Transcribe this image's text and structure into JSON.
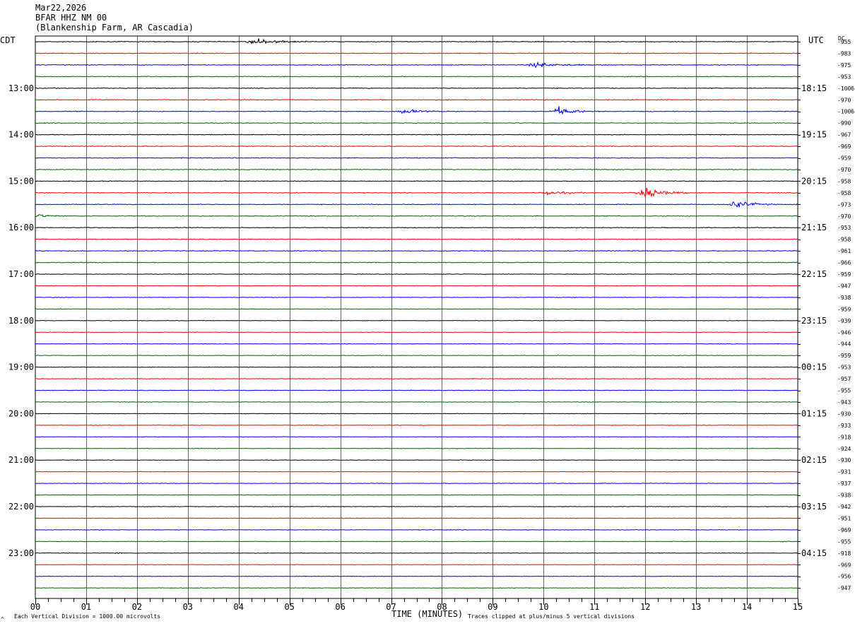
{
  "header": {
    "date": "Mar22,2026",
    "station": "BFAR HHZ NM 00",
    "location": "(Blankenship Farm, AR Cascadia)"
  },
  "left_zone_label": "CDT",
  "right_zone_label": "UTC",
  "dc_label": "DC",
  "footer": {
    "scale_note": "Each Vertical Division = 1000.00 microvolts",
    "clip_note": "Traces clipped at plus/minus 5 vertical divisions",
    "corner_mark": "^"
  },
  "chart_data": {
    "type": "seismogram-helicorder",
    "xlabel": "TIME (MINUTES)",
    "x_ticks": [
      "00",
      "01",
      "02",
      "03",
      "04",
      "05",
      "06",
      "07",
      "08",
      "09",
      "10",
      "11",
      "12",
      "13",
      "14",
      "15"
    ],
    "xlim": [
      0,
      15
    ],
    "trace_colors": [
      "#000000",
      "#ff0000",
      "#0000ff",
      "#006400"
    ],
    "left_hour_labels": [
      {
        "trace": 4,
        "label": "13:00"
      },
      {
        "trace": 8,
        "label": "14:00"
      },
      {
        "trace": 12,
        "label": "15:00"
      },
      {
        "trace": 16,
        "label": "16:00"
      },
      {
        "trace": 20,
        "label": "17:00"
      },
      {
        "trace": 24,
        "label": "18:00"
      },
      {
        "trace": 28,
        "label": "19:00"
      },
      {
        "trace": 32,
        "label": "20:00"
      },
      {
        "trace": 36,
        "label": "21:00"
      },
      {
        "trace": 40,
        "label": "22:00"
      },
      {
        "trace": 44,
        "label": "23:00"
      }
    ],
    "right_hour_labels": [
      {
        "trace": 4,
        "label": "18:15"
      },
      {
        "trace": 8,
        "label": "19:15"
      },
      {
        "trace": 12,
        "label": "20:15"
      },
      {
        "trace": 16,
        "label": "21:15"
      },
      {
        "trace": 20,
        "label": "22:15"
      },
      {
        "trace": 24,
        "label": "23:15"
      },
      {
        "trace": 28,
        "label": "00:15"
      },
      {
        "trace": 32,
        "label": "01:15"
      },
      {
        "trace": 36,
        "label": "02:15"
      },
      {
        "trace": 40,
        "label": "03:15"
      },
      {
        "trace": 44,
        "label": "04:15"
      }
    ],
    "dc_offsets": [
      "-955",
      "-983",
      "-975",
      "-953",
      "-1006",
      "-970",
      "-1006",
      "-990",
      "-967",
      "-969",
      "-959",
      "-970",
      "-958",
      "-958",
      "-973",
      "-970",
      "-953",
      "-958",
      "-961",
      "-966",
      "-959",
      "-947",
      "-938",
      "-959",
      "-939",
      "-946",
      "-944",
      "-959",
      "-953",
      "-957",
      "-955",
      "-943",
      "-930",
      "-933",
      "-918",
      "-924",
      "-930",
      "-931",
      "-937",
      "-938",
      "-942",
      "-951",
      "-969",
      "-955",
      "-918",
      "-969",
      "-956",
      "-947"
    ],
    "events": [
      {
        "trace": 0,
        "minute": 4.4,
        "amplitude_divisions": 1.2,
        "duration_minutes": 1.2
      },
      {
        "trace": 2,
        "minute": 9.9,
        "amplitude_divisions": 1.0,
        "duration_minutes": 1.1
      },
      {
        "trace": 6,
        "minute": 7.3,
        "amplitude_divisions": 0.9,
        "duration_minutes": 0.9
      },
      {
        "trace": 6,
        "minute": 10.3,
        "amplitude_divisions": 1.8,
        "duration_minutes": 0.8
      },
      {
        "trace": 13,
        "minute": 10.1,
        "amplitude_divisions": 0.8,
        "duration_minutes": 0.9
      },
      {
        "trace": 13,
        "minute": 12.0,
        "amplitude_divisions": 2.5,
        "duration_minutes": 0.9
      },
      {
        "trace": 14,
        "minute": 13.8,
        "amplitude_divisions": 1.8,
        "duration_minutes": 0.8
      },
      {
        "trace": 14,
        "minute": 15.0,
        "amplitude_divisions": 0.9,
        "duration_minutes": 0.2
      },
      {
        "trace": 15,
        "minute": 0.1,
        "amplitude_divisions": 0.8,
        "duration_minutes": 0.5
      },
      {
        "trace": 43,
        "minute": 14.7,
        "amplitude_divisions": 0.3,
        "duration_minutes": 0.4
      },
      {
        "trace": 44,
        "minute": 1.6,
        "amplitude_divisions": 0.5,
        "duration_minutes": 0.2
      }
    ]
  }
}
